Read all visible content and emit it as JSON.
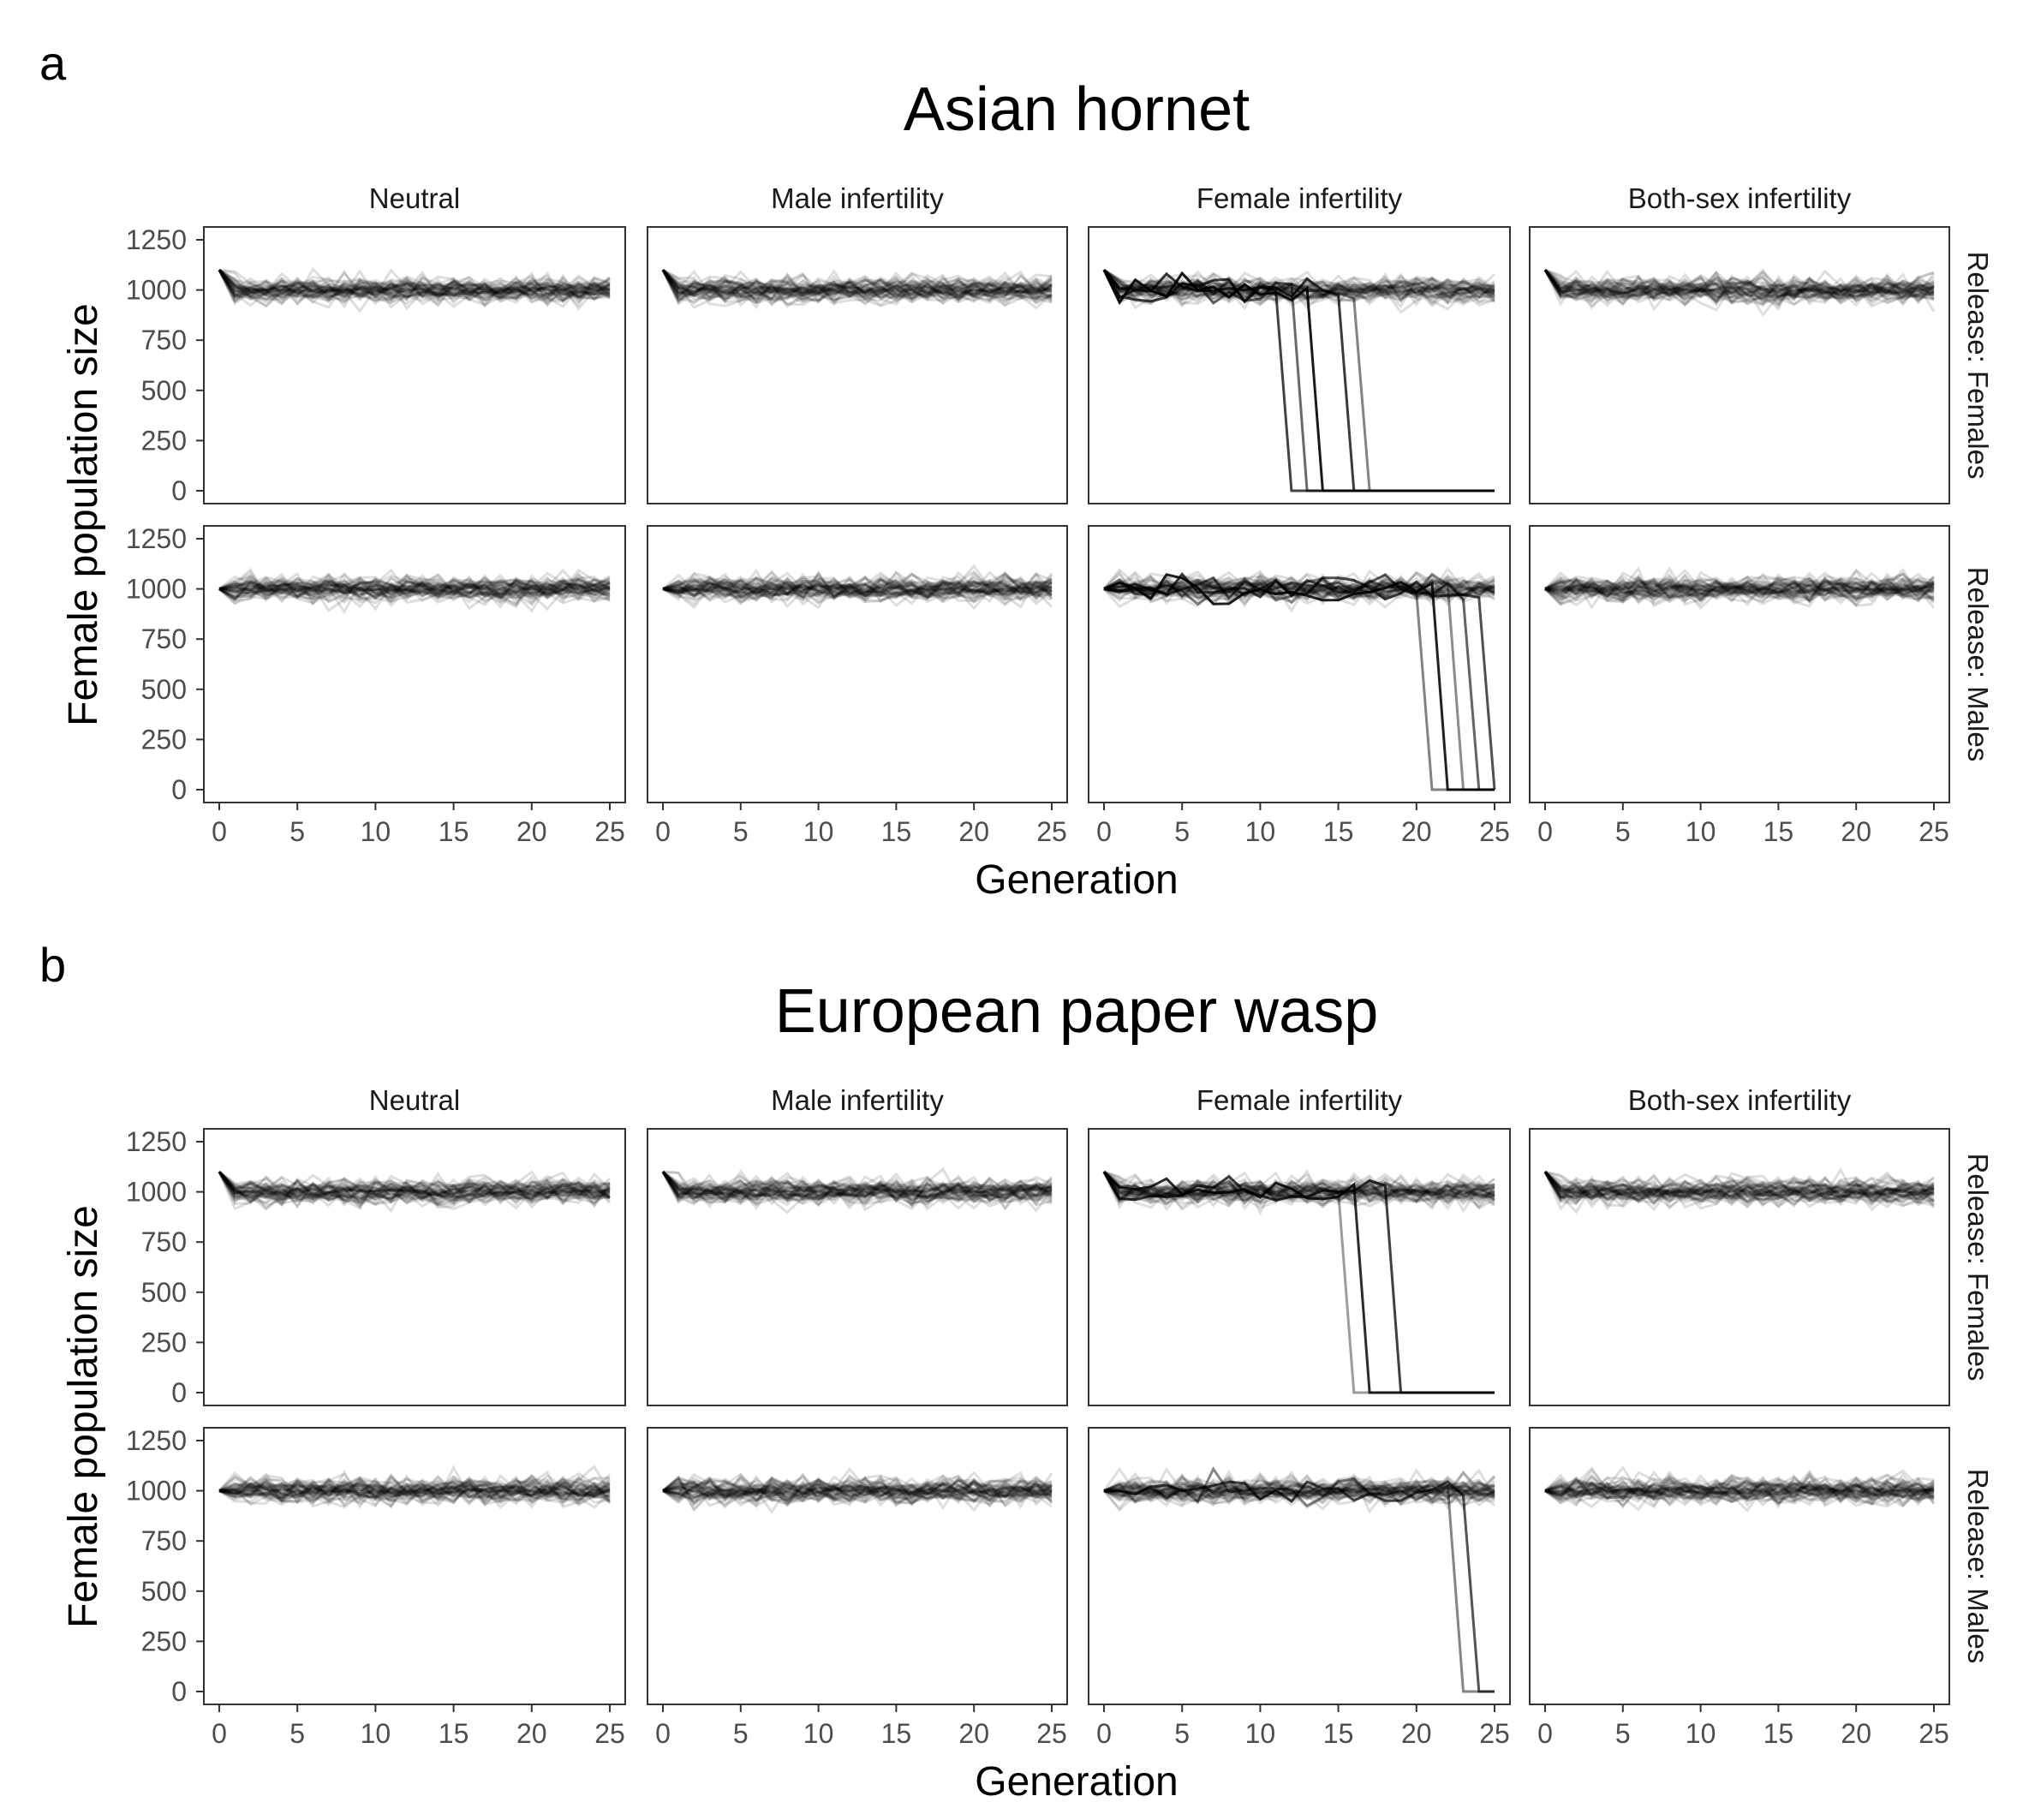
{
  "chart_data": [
    {
      "type": "line",
      "panel_label": "a",
      "title": "Asian hornet",
      "xlabel": "Generation",
      "ylabel": "Female population size",
      "columns": [
        "Neutral",
        "Male infertility",
        "Female infertility",
        "Both-sex infertility"
      ],
      "rows": [
        "Release: Females",
        "Release: Males"
      ],
      "xlim": [
        0,
        25
      ],
      "ylim": [
        0,
        1250
      ],
      "x_ticks": [
        0,
        5,
        10,
        15,
        20,
        25
      ],
      "y_ticks": [
        0,
        250,
        500,
        750,
        1000,
        1250
      ],
      "replicates_per_panel": 50,
      "start_value": {
        "Release: Females": 1100,
        "Release: Males": 1000
      },
      "equilibrium": 1000,
      "collapse_generations": {
        "Release: Females|Female infertility": [
          12,
          13,
          14,
          16,
          17
        ],
        "Release: Males|Female infertility": [
          21,
          22,
          23,
          24,
          25
        ]
      },
      "grid": false,
      "legend": "none"
    },
    {
      "type": "line",
      "panel_label": "b",
      "title": "European paper wasp",
      "xlabel": "Generation",
      "ylabel": "Female population size",
      "columns": [
        "Neutral",
        "Male infertility",
        "Female infertility",
        "Both-sex infertility"
      ],
      "rows": [
        "Release: Females",
        "Release: Males"
      ],
      "xlim": [
        0,
        25
      ],
      "ylim": [
        0,
        1250
      ],
      "x_ticks": [
        0,
        5,
        10,
        15,
        20,
        25
      ],
      "y_ticks": [
        0,
        250,
        500,
        750,
        1000,
        1250
      ],
      "replicates_per_panel": 50,
      "start_value": {
        "Release: Females": 1100,
        "Release: Males": 1000
      },
      "equilibrium": 1000,
      "collapse_generations": {
        "Release: Females|Female infertility": [
          16,
          17,
          19
        ],
        "Release: Males|Female infertility": [
          23,
          24
        ]
      },
      "grid": false,
      "legend": "none"
    }
  ]
}
